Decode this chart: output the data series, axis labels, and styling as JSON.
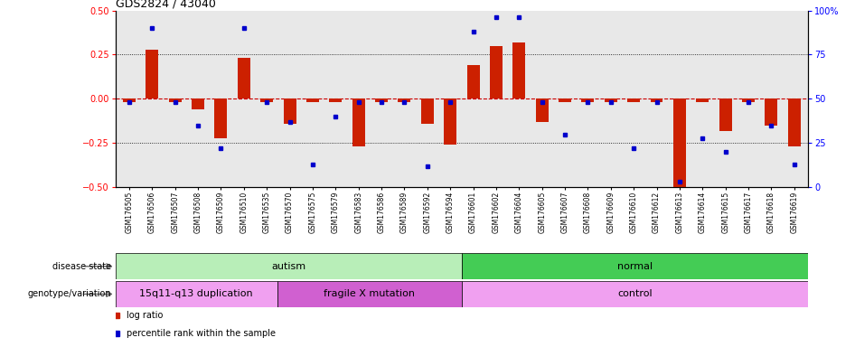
{
  "title": "GDS2824 / 43040",
  "samples": [
    "GSM176505",
    "GSM176506",
    "GSM176507",
    "GSM176508",
    "GSM176509",
    "GSM176510",
    "GSM176535",
    "GSM176570",
    "GSM176575",
    "GSM176579",
    "GSM176583",
    "GSM176586",
    "GSM176589",
    "GSM176592",
    "GSM176594",
    "GSM176601",
    "GSM176602",
    "GSM176604",
    "GSM176605",
    "GSM176607",
    "GSM176608",
    "GSM176609",
    "GSM176610",
    "GSM176612",
    "GSM176613",
    "GSM176614",
    "GSM176615",
    "GSM176617",
    "GSM176618",
    "GSM176619"
  ],
  "log_ratio": [
    -0.02,
    0.28,
    -0.02,
    -0.06,
    -0.22,
    0.23,
    -0.02,
    -0.14,
    -0.02,
    -0.02,
    -0.27,
    -0.02,
    -0.02,
    -0.14,
    -0.26,
    0.19,
    0.3,
    0.32,
    -0.13,
    -0.02,
    -0.02,
    -0.02,
    -0.02,
    -0.02,
    -0.5,
    -0.02,
    -0.18,
    -0.02,
    -0.15,
    -0.27
  ],
  "percentile": [
    48,
    90,
    48,
    35,
    22,
    90,
    48,
    37,
    13,
    40,
    48,
    48,
    48,
    12,
    48,
    88,
    96,
    96,
    48,
    30,
    48,
    48,
    22,
    48,
    3,
    28,
    20,
    48,
    35,
    13
  ],
  "disease_state": [
    {
      "label": "autism",
      "start": 0,
      "end": 15,
      "color": "#b8eeb8"
    },
    {
      "label": "normal",
      "start": 15,
      "end": 30,
      "color": "#44cc55"
    }
  ],
  "genotype": [
    {
      "label": "15q11-q13 duplication",
      "start": 0,
      "end": 7,
      "color": "#f0a0f0"
    },
    {
      "label": "fragile X mutation",
      "start": 7,
      "end": 15,
      "color": "#d060d0"
    },
    {
      "label": "control",
      "start": 15,
      "end": 30,
      "color": "#f0a0f0"
    }
  ],
  "bar_color": "#cc2000",
  "dot_color": "#0000cc",
  "hline_color": "#cc0000",
  "plot_bg": "#e8e8e8",
  "ylim": [
    -0.5,
    0.5
  ],
  "y2lim": [
    0,
    100
  ],
  "yticks_left": [
    -0.5,
    -0.25,
    0.0,
    0.25,
    0.5
  ],
  "yticks_right": [
    0,
    25,
    50,
    75,
    100
  ],
  "bar_width": 0.55
}
